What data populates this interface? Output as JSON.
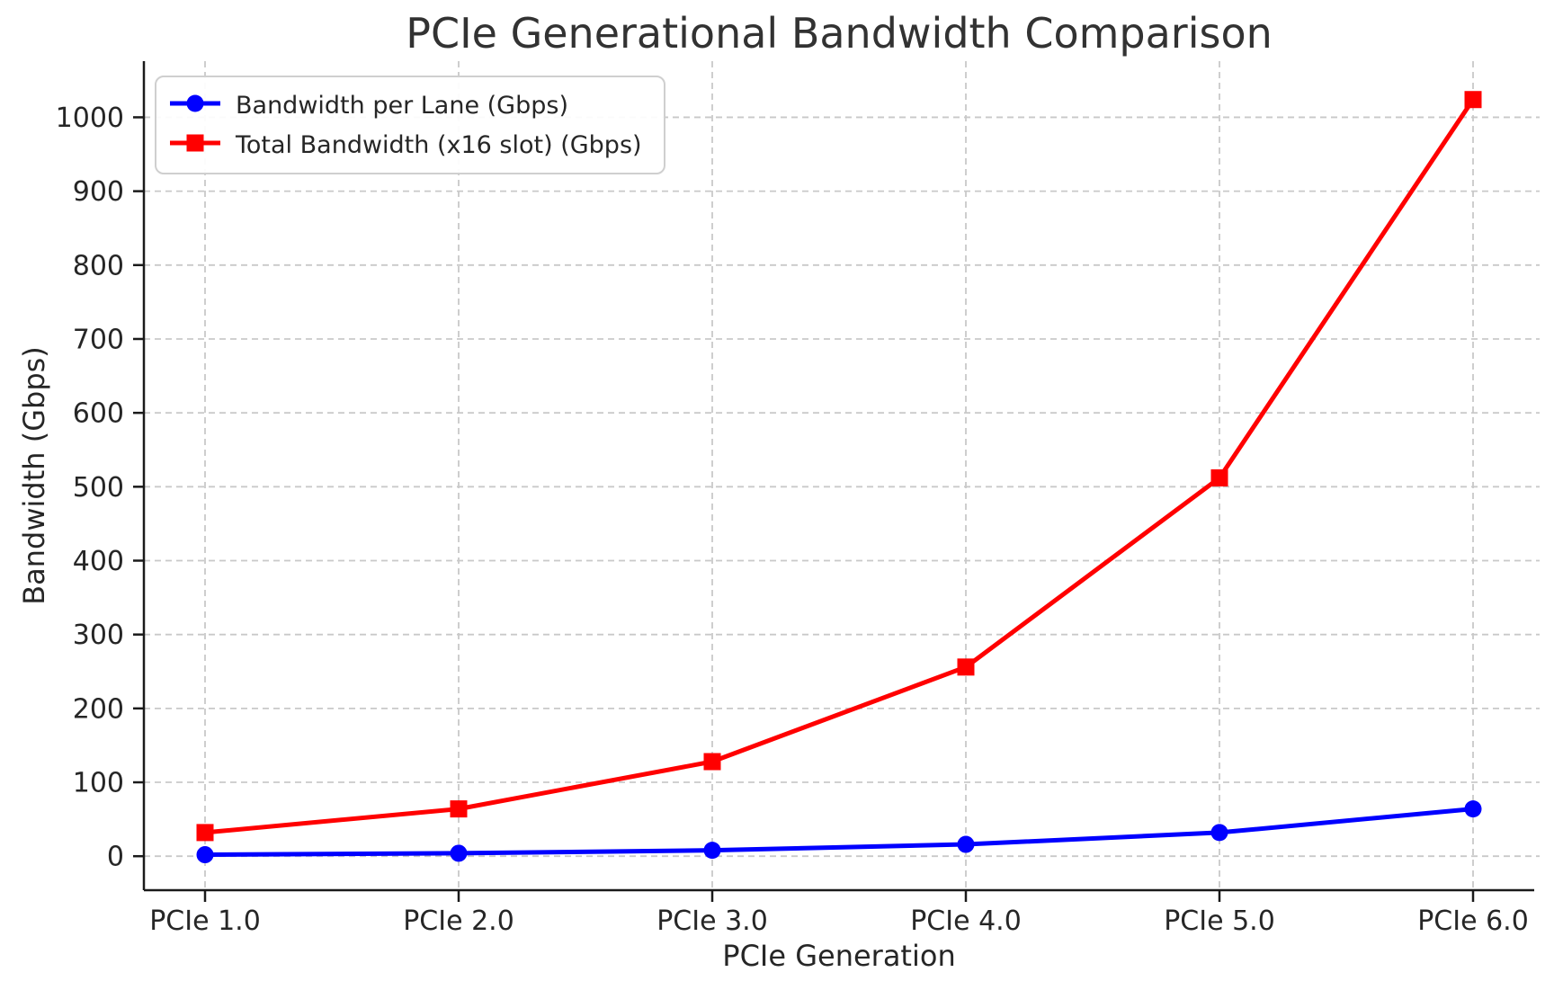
{
  "chart_data": {
    "type": "line",
    "title": "PCIe Generational Bandwidth Comparison",
    "xlabel": "PCIe Generation",
    "ylabel": "Bandwidth (Gbps)",
    "categories": [
      "PCIe 1.0",
      "PCIe 2.0",
      "PCIe 3.0",
      "PCIe 4.0",
      "PCIe 5.0",
      "PCIe 6.0"
    ],
    "series": [
      {
        "name": "Bandwidth per Lane (Gbps)",
        "color": "#0000ff",
        "marker": "circle",
        "values": [
          2,
          4,
          8,
          16,
          32,
          64
        ]
      },
      {
        "name": "Total Bandwidth (x16 slot) (Gbps)",
        "color": "#ff0000",
        "marker": "square",
        "values": [
          32,
          64,
          128,
          256,
          512,
          1024
        ]
      }
    ],
    "yticks": [
      0,
      100,
      200,
      300,
      400,
      500,
      600,
      700,
      800,
      900,
      1000
    ],
    "ylim": [
      -46,
      1076
    ],
    "grid": "dashed",
    "grid_color": "#c9c9c9",
    "spine_color": "#1a1a1a",
    "legend_position": "upper left"
  }
}
